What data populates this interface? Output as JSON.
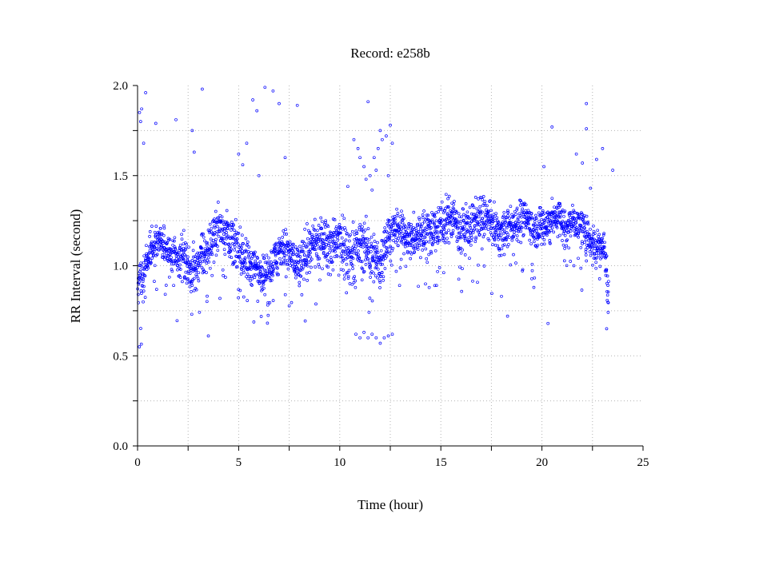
{
  "chart_data": {
    "type": "scatter",
    "title": "Record:  e258b",
    "xlabel": "Time (hour)",
    "ylabel": "RR Interval (second)",
    "xlim": [
      0,
      25
    ],
    "ylim": [
      0.0,
      2.0
    ],
    "x_ticks": [
      0,
      5,
      10,
      15,
      20,
      25
    ],
    "x_tick_labels": [
      "0",
      "5",
      "10",
      "15",
      "20",
      "25"
    ],
    "y_ticks": [
      0.0,
      0.5,
      1.0,
      1.5,
      2.0
    ],
    "y_tick_labels": [
      "0.0",
      "0.5",
      "1.0",
      "1.5",
      "2.0"
    ],
    "grid": true,
    "marker": "open-circle",
    "marker_color": "#0000ff",
    "series": [
      {
        "name": "",
        "trend": {
          "x": [
            0.0,
            0.3,
            0.6,
            1.0,
            1.3,
            1.6,
            2.0,
            2.3,
            2.6,
            2.9,
            3.2,
            3.6,
            4.0,
            4.4,
            4.8,
            5.2,
            5.6,
            6.0,
            6.4,
            6.8,
            7.2,
            7.6,
            8.0,
            8.4,
            8.8,
            9.2,
            9.6,
            10.0,
            10.4,
            10.8,
            11.2,
            11.6,
            12.0,
            12.4,
            12.8,
            13.2,
            13.6,
            14.0,
            14.4,
            14.8,
            15.2,
            15.6,
            16.0,
            16.4,
            16.8,
            17.2,
            17.6,
            18.0,
            18.4,
            18.8,
            19.2,
            19.6,
            20.0,
            20.4,
            20.8,
            21.2,
            21.6,
            22.0,
            22.4,
            22.8,
            23.1,
            23.3
          ],
          "y": [
            0.88,
            0.95,
            1.08,
            1.15,
            1.12,
            1.05,
            1.02,
            1.08,
            0.95,
            1.0,
            1.05,
            1.12,
            1.22,
            1.2,
            1.12,
            1.05,
            1.0,
            0.98,
            0.95,
            1.05,
            1.1,
            1.05,
            1.0,
            1.1,
            1.12,
            1.15,
            1.12,
            1.15,
            1.05,
            1.1,
            1.12,
            1.05,
            1.0,
            1.18,
            1.2,
            1.18,
            1.15,
            1.18,
            1.2,
            1.22,
            1.25,
            1.28,
            1.2,
            1.22,
            1.25,
            1.28,
            1.2,
            1.18,
            1.22,
            1.25,
            1.28,
            1.2,
            1.22,
            1.25,
            1.28,
            1.22,
            1.25,
            1.2,
            1.15,
            1.12,
            1.1,
            0.82
          ],
          "spread": [
            0.1,
            0.1,
            0.1,
            0.1,
            0.1,
            0.12,
            0.12,
            0.12,
            0.12,
            0.12,
            0.12,
            0.12,
            0.12,
            0.12,
            0.12,
            0.12,
            0.12,
            0.1,
            0.1,
            0.1,
            0.12,
            0.12,
            0.12,
            0.12,
            0.12,
            0.12,
            0.12,
            0.14,
            0.14,
            0.14,
            0.14,
            0.14,
            0.14,
            0.12,
            0.1,
            0.1,
            0.1,
            0.12,
            0.12,
            0.12,
            0.12,
            0.12,
            0.12,
            0.12,
            0.12,
            0.12,
            0.12,
            0.1,
            0.1,
            0.1,
            0.1,
            0.1,
            0.1,
            0.1,
            0.1,
            0.1,
            0.1,
            0.1,
            0.1,
            0.1,
            0.1,
            0.1
          ]
        },
        "outliers": [
          [
            0.1,
            1.85
          ],
          [
            0.15,
            1.8
          ],
          [
            0.2,
            1.87
          ],
          [
            0.3,
            1.68
          ],
          [
            0.4,
            1.96
          ],
          [
            0.9,
            1.79
          ],
          [
            1.9,
            1.81
          ],
          [
            2.7,
            1.75
          ],
          [
            2.8,
            1.63
          ],
          [
            3.2,
            1.98
          ],
          [
            3.5,
            0.61
          ],
          [
            5.0,
            1.62
          ],
          [
            5.2,
            1.56
          ],
          [
            5.4,
            1.68
          ],
          [
            5.7,
            1.92
          ],
          [
            5.9,
            1.86
          ],
          [
            6.0,
            1.5
          ],
          [
            6.3,
            1.99
          ],
          [
            6.7,
            1.97
          ],
          [
            7.0,
            1.9
          ],
          [
            7.3,
            1.6
          ],
          [
            7.9,
            1.89
          ],
          [
            10.4,
            1.44
          ],
          [
            10.7,
            1.7
          ],
          [
            10.9,
            1.65
          ],
          [
            11.0,
            1.6
          ],
          [
            11.2,
            1.55
          ],
          [
            11.3,
            1.48
          ],
          [
            11.4,
            1.91
          ],
          [
            11.5,
            1.5
          ],
          [
            11.6,
            1.42
          ],
          [
            11.7,
            1.6
          ],
          [
            11.8,
            1.53
          ],
          [
            11.9,
            1.65
          ],
          [
            12.0,
            1.75
          ],
          [
            12.1,
            1.7
          ],
          [
            12.3,
            1.72
          ],
          [
            12.5,
            1.78
          ],
          [
            12.6,
            1.68
          ],
          [
            12.4,
            1.5
          ],
          [
            10.8,
            0.62
          ],
          [
            11.0,
            0.6
          ],
          [
            11.2,
            0.63
          ],
          [
            11.4,
            0.6
          ],
          [
            11.6,
            0.62
          ],
          [
            11.8,
            0.6
          ],
          [
            12.0,
            0.57
          ],
          [
            12.2,
            0.6
          ],
          [
            12.4,
            0.61
          ],
          [
            12.6,
            0.62
          ],
          [
            14.7,
            0.89
          ],
          [
            18.0,
            0.83
          ],
          [
            18.3,
            0.72
          ],
          [
            19.6,
            0.88
          ],
          [
            20.1,
            1.55
          ],
          [
            20.3,
            0.68
          ],
          [
            20.5,
            1.77
          ],
          [
            21.7,
            1.62
          ],
          [
            22.0,
            1.57
          ],
          [
            22.2,
            1.9
          ],
          [
            22.2,
            1.76
          ],
          [
            22.4,
            1.43
          ],
          [
            22.7,
            1.59
          ],
          [
            23.0,
            1.65
          ],
          [
            23.2,
            0.65
          ],
          [
            23.5,
            1.53
          ]
        ]
      }
    ]
  }
}
